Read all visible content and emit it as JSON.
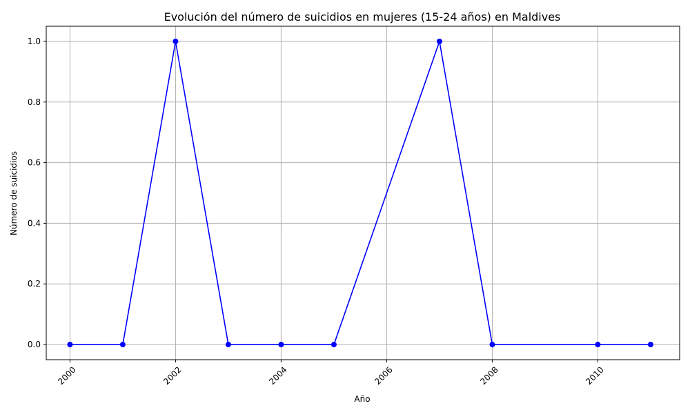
{
  "chart_data": {
    "type": "line",
    "title": "Evolución del número de suicidios en mujeres (15-24 años) en Maldives",
    "xlabel": "Año",
    "ylabel": "Número de suicidios",
    "x": [
      2000,
      2001,
      2002,
      2003,
      2004,
      2005,
      2007,
      2008,
      2010,
      2011
    ],
    "series": [
      {
        "values": [
          0,
          0,
          1,
          0,
          0,
          0,
          1,
          0,
          0,
          0
        ],
        "color": "#0000ff",
        "marker": "circle"
      }
    ],
    "xlim": [
      1999.55,
      2011.55
    ],
    "ylim": [
      -0.05,
      1.05
    ],
    "xticks": [
      2000,
      2002,
      2004,
      2006,
      2008,
      2010
    ],
    "xtick_labels": [
      "2000",
      "2002",
      "2004",
      "2006",
      "2008",
      "2010"
    ],
    "yticks": [
      0.0,
      0.2,
      0.4,
      0.6,
      0.8,
      1.0
    ],
    "ytick_labels": [
      "0.0",
      "0.2",
      "0.4",
      "0.6",
      "0.8",
      "1.0"
    ],
    "xtick_rotation": 45,
    "grid": true,
    "grid_color": "#b0b0b0",
    "legend": "none"
  }
}
